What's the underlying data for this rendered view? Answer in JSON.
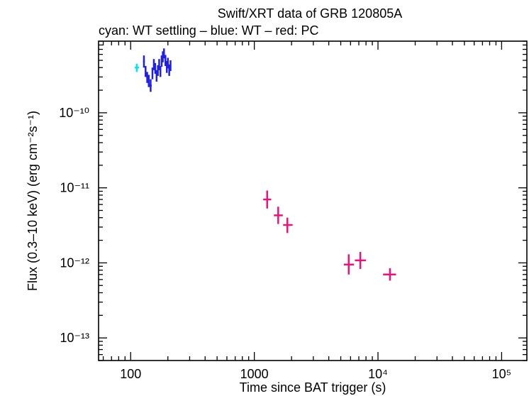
{
  "chart_data": {
    "type": "scatter",
    "title": "Swift/XRT data of GRB 120805A",
    "subtitle": "cyan: WT settling – blue: WT – red: PC",
    "xlabel": "Time since BAT trigger (s)",
    "ylabel": "Flux (0.3–10 keV) (erg cm⁻²s⁻¹)",
    "x_scale": "log",
    "y_scale": "log",
    "xlim": [
      55,
      160000
    ],
    "ylim": [
      5e-14,
      9e-10
    ],
    "x_ticks": [
      {
        "value": 100,
        "label": "100"
      },
      {
        "value": 1000,
        "label": "1000"
      },
      {
        "value": 10000,
        "label": "10⁴"
      },
      {
        "value": 100000,
        "label": "10⁵"
      }
    ],
    "y_ticks": [
      {
        "value": 1e-10,
        "label": "10⁻¹⁰"
      },
      {
        "value": 1e-11,
        "label": "10⁻¹¹"
      },
      {
        "value": 1e-12,
        "label": "10⁻¹²"
      },
      {
        "value": 1e-13,
        "label": "10⁻¹³"
      }
    ],
    "series": [
      {
        "name": "WT settling",
        "color": "#00e5ee",
        "points": [
          {
            "x": 112,
            "y": 4e-10,
            "xlo": 108,
            "xhi": 117,
            "ylo": 3.5e-10,
            "yhi": 4.5e-10
          }
        ]
      },
      {
        "name": "WT",
        "color": "#1f1fe6",
        "points": [
          {
            "x": 128,
            "y": 4.8e-10,
            "xlo": 126,
            "xhi": 130,
            "ylo": 4e-10,
            "yhi": 5.8e-10
          },
          {
            "x": 132,
            "y": 3.6e-10,
            "xlo": 130,
            "xhi": 134,
            "ylo": 3e-10,
            "yhi": 4.2e-10
          },
          {
            "x": 136,
            "y": 3e-10,
            "xlo": 134,
            "xhi": 138,
            "ylo": 2.5e-10,
            "yhi": 3.5e-10
          },
          {
            "x": 140,
            "y": 2.7e-10,
            "xlo": 138,
            "xhi": 142,
            "ylo": 2.2e-10,
            "yhi": 3.2e-10
          },
          {
            "x": 145,
            "y": 2.3e-10,
            "xlo": 142,
            "xhi": 148,
            "ylo": 1.9e-10,
            "yhi": 2.8e-10
          },
          {
            "x": 150,
            "y": 3.4e-10,
            "xlo": 148,
            "xhi": 152,
            "ylo": 2.8e-10,
            "yhi": 4e-10
          },
          {
            "x": 154,
            "y": 4.4e-10,
            "xlo": 152,
            "xhi": 156,
            "ylo": 3.7e-10,
            "yhi": 5.2e-10
          },
          {
            "x": 158,
            "y": 3.9e-10,
            "xlo": 156,
            "xhi": 160,
            "ylo": 3.3e-10,
            "yhi": 4.6e-10
          },
          {
            "x": 162,
            "y": 3.1e-10,
            "xlo": 160,
            "xhi": 164,
            "ylo": 2.6e-10,
            "yhi": 3.7e-10
          },
          {
            "x": 166,
            "y": 3.7e-10,
            "xlo": 164,
            "xhi": 168,
            "ylo": 3.1e-10,
            "yhi": 4.3e-10
          },
          {
            "x": 170,
            "y": 4.4e-10,
            "xlo": 168,
            "xhi": 172,
            "ylo": 3.7e-10,
            "yhi": 5.2e-10
          },
          {
            "x": 174,
            "y": 3.6e-10,
            "xlo": 172,
            "xhi": 176,
            "ylo": 3e-10,
            "yhi": 4.2e-10
          },
          {
            "x": 178,
            "y": 4.9e-10,
            "xlo": 176,
            "xhi": 180,
            "ylo": 4.1e-10,
            "yhi": 5.8e-10
          },
          {
            "x": 182,
            "y": 5.6e-10,
            "xlo": 180,
            "xhi": 184,
            "ylo": 4.7e-10,
            "yhi": 6.6e-10
          },
          {
            "x": 186,
            "y": 6.2e-10,
            "xlo": 184,
            "xhi": 188,
            "ylo": 5.3e-10,
            "yhi": 7.2e-10
          },
          {
            "x": 191,
            "y": 5e-10,
            "xlo": 188,
            "xhi": 194,
            "ylo": 4.2e-10,
            "yhi": 5.9e-10
          },
          {
            "x": 196,
            "y": 4.1e-10,
            "xlo": 194,
            "xhi": 198,
            "ylo": 3.4e-10,
            "yhi": 4.9e-10
          },
          {
            "x": 200,
            "y": 4.6e-10,
            "xlo": 198,
            "xhi": 202,
            "ylo": 3.9e-10,
            "yhi": 5.4e-10
          },
          {
            "x": 205,
            "y": 3.7e-10,
            "xlo": 202,
            "xhi": 208,
            "ylo": 3.1e-10,
            "yhi": 4.4e-10
          },
          {
            "x": 210,
            "y": 4.3e-10,
            "xlo": 208,
            "xhi": 213,
            "ylo": 3.6e-10,
            "yhi": 5e-10
          }
        ]
      },
      {
        "name": "PC",
        "color": "#ee1177",
        "points": [
          {
            "x": 1270,
            "y": 7e-12,
            "xlo": 1180,
            "xhi": 1370,
            "ylo": 5.3e-12,
            "yhi": 9.2e-12
          },
          {
            "x": 1560,
            "y": 4.3e-12,
            "xlo": 1440,
            "xhi": 1700,
            "ylo": 3.3e-12,
            "yhi": 5.6e-12
          },
          {
            "x": 1850,
            "y": 3.2e-12,
            "xlo": 1710,
            "xhi": 2040,
            "ylo": 2.5e-12,
            "yhi": 4e-12
          },
          {
            "x": 5800,
            "y": 9.5e-13,
            "xlo": 5300,
            "xhi": 6400,
            "ylo": 7e-13,
            "yhi": 1.3e-12
          },
          {
            "x": 7200,
            "y": 1.08e-12,
            "xlo": 6500,
            "xhi": 8000,
            "ylo": 8.3e-13,
            "yhi": 1.4e-12
          },
          {
            "x": 12500,
            "y": 7e-13,
            "xlo": 11000,
            "xhi": 14000,
            "ylo": 5.8e-13,
            "yhi": 8.5e-13
          }
        ]
      }
    ]
  }
}
